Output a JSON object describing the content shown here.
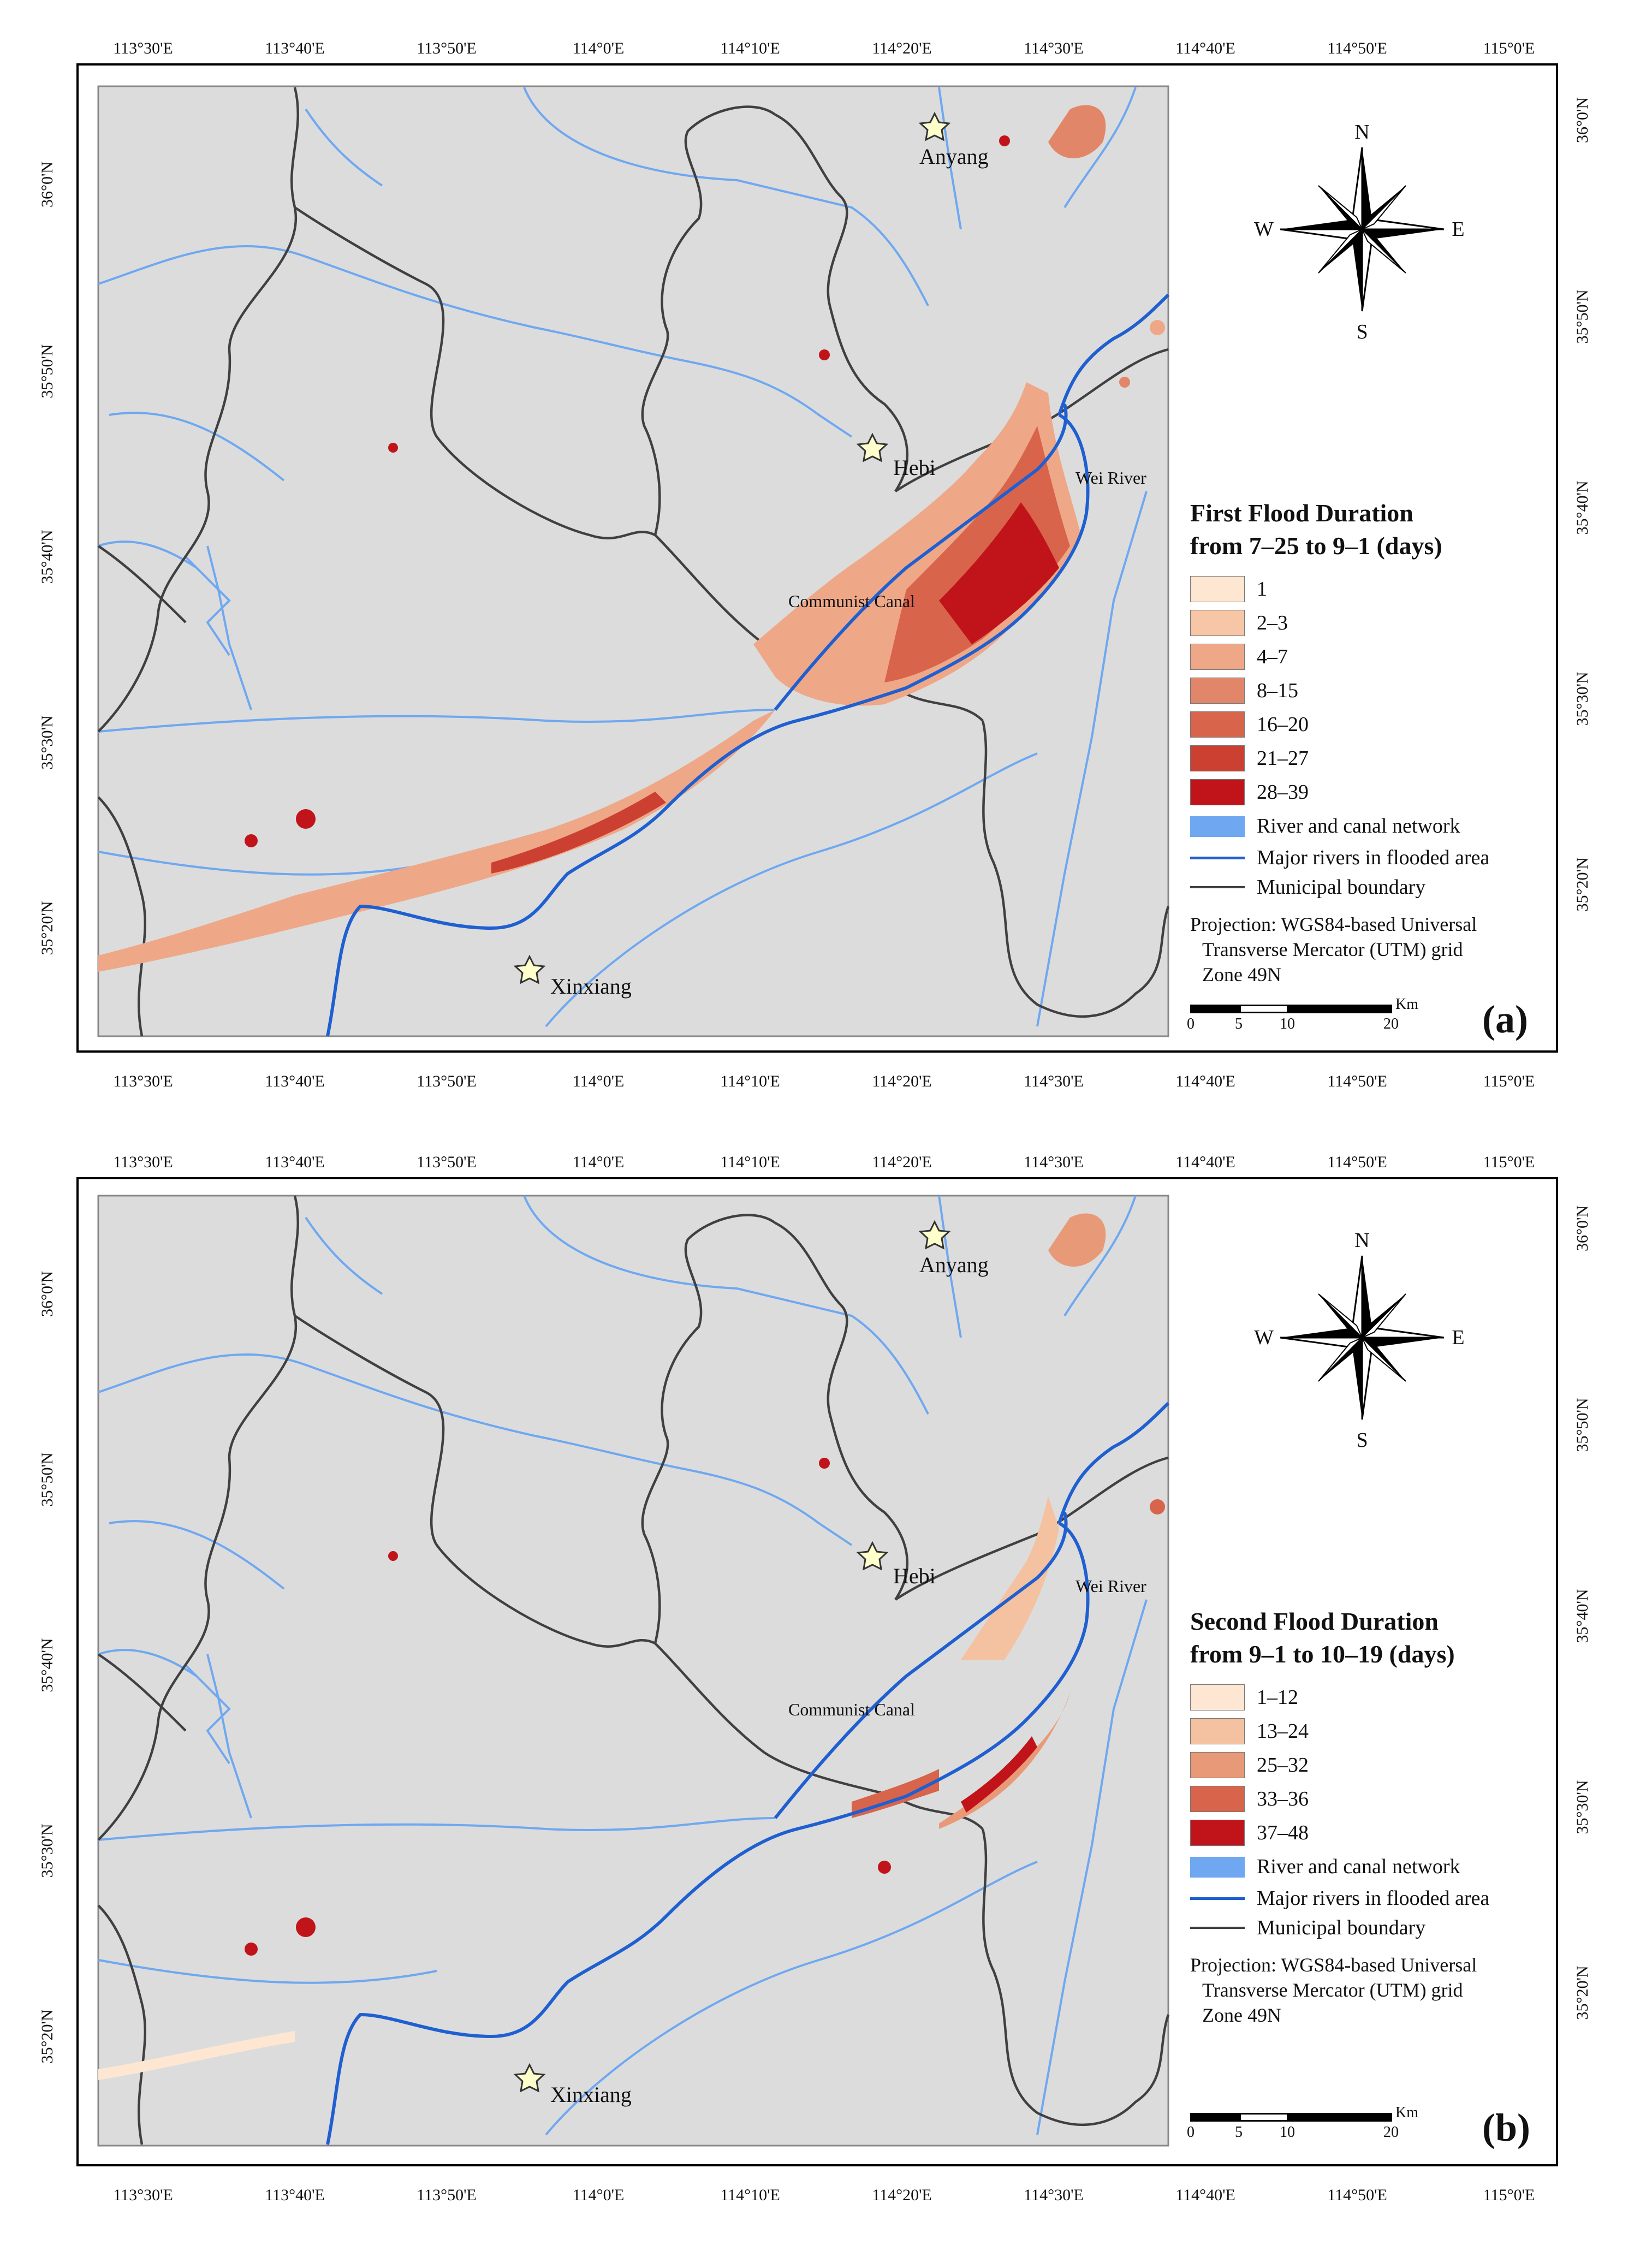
{
  "axes": {
    "lon_labels": [
      "113°30'E",
      "113°40'E",
      "113°50'E",
      "114°0'E",
      "114°10'E",
      "114°20'E",
      "114°30'E",
      "114°40'E",
      "114°50'E",
      "115°0'E"
    ],
    "lat_labels": [
      "36°0'N",
      "35°50'N",
      "35°40'N",
      "35°30'N",
      "35°20'N"
    ]
  },
  "places": {
    "anyang": "Anyang",
    "hebi": "Hebi",
    "xinxiang": "Xinxiang",
    "wei_river": "Wei River",
    "communist_canal": "Communist Canal"
  },
  "compass": {
    "n": "N",
    "s": "S",
    "e": "E",
    "w": "W"
  },
  "panel_a": {
    "label": "(a)",
    "title_line1": "First Flood Duration",
    "title_line2": "from 7–25 to 9–1 (days)",
    "classes": [
      {
        "label": "1",
        "color": "#fde6d2"
      },
      {
        "label": "2–3",
        "color": "#f6c6a6"
      },
      {
        "label": "4–7",
        "color": "#eea888"
      },
      {
        "label": "8–15",
        "color": "#e2866a"
      },
      {
        "label": "16–20",
        "color": "#d8644c"
      },
      {
        "label": "21–27",
        "color": "#cc4032"
      },
      {
        "label": "28–39",
        "color": "#c0141a"
      }
    ]
  },
  "panel_b": {
    "label": "(b)",
    "title_line1": "Second Flood Duration",
    "title_line2": "from 9–1 to 10–19 (days)",
    "classes": [
      {
        "label": "1–12",
        "color": "#fde6d2"
      },
      {
        "label": "13–24",
        "color": "#f4c2a0"
      },
      {
        "label": "25–32",
        "color": "#e89a78"
      },
      {
        "label": "33–36",
        "color": "#d8644c"
      },
      {
        "label": "37–48",
        "color": "#c0141a"
      }
    ]
  },
  "legend_common": {
    "river_network": "River and canal network",
    "major_rivers": "Major rivers in flooded area",
    "boundary": "Municipal boundary",
    "proj_line1": "Projection: WGS84-based Universal",
    "proj_line2": "Transverse Mercator (UTM) grid",
    "proj_line3": "Zone 49N"
  },
  "scale": {
    "unit": "Km",
    "ticks": [
      "0",
      "5",
      "10",
      "20"
    ]
  },
  "colors": {
    "land": "#dcdcdc",
    "river_network": "#6fa8f0",
    "major_river": "#1f5fd0",
    "boundary": "#404040"
  }
}
